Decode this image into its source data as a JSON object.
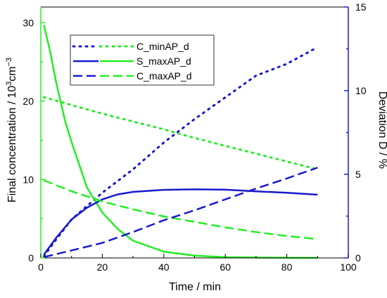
{
  "chart_data": {
    "type": "line",
    "xlabel": "Time / min",
    "ylabel_left": "Final concentration / 10",
    "ylabel_left_sup1": "3",
    "ylabel_left_unit": "cm",
    "ylabel_left_sup2": "−3",
    "ylabel_right": "Deviation D / %",
    "xlim": [
      0,
      100
    ],
    "ylim_left": [
      0,
      32
    ],
    "ylim_right": [
      0,
      15
    ],
    "x_ticks": [
      "0",
      "20",
      "40",
      "60",
      "80",
      "100"
    ],
    "y_left_ticks": [
      "0",
      "10",
      "20",
      "30"
    ],
    "y_right_ticks": [
      "0",
      "5",
      "10",
      "15"
    ],
    "legend_placement": "top-left",
    "legend": [
      {
        "label": "C_minAP_d",
        "style": "dotted"
      },
      {
        "label": "S_maxAP_d",
        "style": "solid"
      },
      {
        "label": "C_maxAP_d",
        "style": "dashed"
      }
    ],
    "colors": {
      "left_axis": "#22ee22",
      "right_axis": "#1a1acd"
    },
    "series": [
      {
        "name": "C_minAP_d",
        "axis": "left",
        "style": "dotted",
        "color": "#22ee22",
        "x": [
          1,
          10,
          20,
          30,
          40,
          50,
          60,
          70,
          80,
          90
        ],
        "y": [
          20.5,
          19.5,
          18.4,
          17.4,
          16.4,
          15.3,
          14.3,
          13.3,
          12.3,
          11.3
        ]
      },
      {
        "name": "C_minAP_d",
        "axis": "right",
        "style": "dotted",
        "color": "#1a1acd",
        "x": [
          1,
          5,
          10,
          15,
          20,
          30,
          40,
          50,
          60,
          70,
          80,
          89
        ],
        "y": [
          0.1,
          1.1,
          2.3,
          3.1,
          3.9,
          5.3,
          6.9,
          8.3,
          9.6,
          10.9,
          11.6,
          12.5
        ]
      },
      {
        "name": "S_maxAP_d",
        "axis": "left",
        "style": "solid",
        "color": "#22ee22",
        "x": [
          1,
          3,
          5,
          8,
          10,
          15,
          20,
          25,
          30,
          40,
          50,
          60,
          70,
          80,
          90
        ],
        "y": [
          29.7,
          26.4,
          22.4,
          17.3,
          14.8,
          9.0,
          5.8,
          3.7,
          2.2,
          0.8,
          0.3,
          0.1,
          0.05,
          0.02,
          0.01
        ]
      },
      {
        "name": "S_maxAP_d",
        "axis": "right",
        "style": "solid",
        "color": "#1a1acd",
        "x": [
          1,
          5,
          10,
          15,
          20,
          25,
          30,
          40,
          50,
          60,
          70,
          80,
          90
        ],
        "y": [
          0.2,
          1.2,
          2.3,
          3.0,
          3.5,
          3.8,
          3.95,
          4.07,
          4.1,
          4.08,
          3.98,
          3.9,
          3.78
        ]
      },
      {
        "name": "C_maxAP_d",
        "axis": "left",
        "style": "dashed",
        "color": "#22ee22",
        "x": [
          1,
          10,
          20,
          30,
          40,
          50,
          60,
          70,
          80,
          90
        ],
        "y": [
          9.9,
          8.5,
          7.2,
          6.2,
          5.3,
          4.6,
          3.9,
          3.3,
          2.8,
          2.4
        ]
      },
      {
        "name": "C_maxAP_d",
        "axis": "right",
        "style": "dashed",
        "color": "#1a1acd",
        "x": [
          1,
          10,
          20,
          30,
          40,
          50,
          60,
          70,
          80,
          90
        ],
        "y": [
          0.05,
          0.45,
          0.9,
          1.55,
          2.25,
          2.85,
          3.5,
          4.15,
          4.75,
          5.4
        ]
      }
    ]
  }
}
